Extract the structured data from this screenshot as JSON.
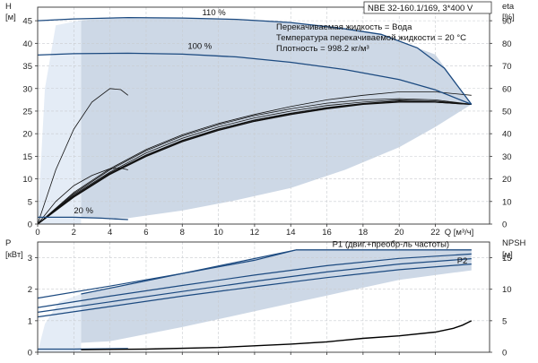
{
  "header": {
    "model_label": "NBE 32-160.1/169, 3*400 V",
    "info_lines": [
      "Перекачиваемая жидкость = Вода",
      "Температура перекачиваемой жидкости = 20 °C",
      "Плотность = 998.2 кг/м³"
    ]
  },
  "colors": {
    "region_fill": "#cdd8e6",
    "lowflow_fill": "#e4ecf6",
    "speed_curve": "#1c4a80",
    "eta_curve": "#111111",
    "npsh_curve": "#000000"
  },
  "chart_data": [
    {
      "type": "line",
      "name": "head-efficiency",
      "ylabel": "H",
      "yunit": "[м]",
      "y2label": "eta",
      "y2unit": "[%]",
      "xlim": [
        0,
        25
      ],
      "ylim": [
        0,
        48
      ],
      "y2lim": [
        0,
        96
      ],
      "x_ticks": [
        0,
        2,
        4,
        6,
        8,
        10,
        12,
        14,
        16,
        18,
        20,
        22
      ],
      "x_tick_labels": [
        "0",
        "2",
        "4",
        "6",
        "8",
        "10",
        "12",
        "14",
        "16",
        "18",
        "20",
        "22"
      ],
      "xlabel": "Q [м³/ч]",
      "y_ticks": [
        0,
        5,
        10,
        15,
        20,
        25,
        30,
        35,
        40,
        45
      ],
      "y_tick_labels": [
        "0",
        "5",
        "10",
        "15",
        "20",
        "25",
        "30",
        "35",
        "40",
        "45"
      ],
      "y2_ticks": [
        0,
        10,
        20,
        30,
        40,
        50,
        60,
        70,
        80,
        90
      ],
      "y2_tick_labels": [
        "0",
        "10",
        "20",
        "30",
        "40",
        "50",
        "60",
        "70",
        "80",
        "90"
      ],
      "grid": true,
      "region": {
        "upper": [
          [
            2.4,
            45.1
          ],
          [
            4,
            45.5
          ],
          [
            8,
            45.6
          ],
          [
            12,
            45.2
          ],
          [
            16,
            44.0
          ],
          [
            19,
            42.0
          ],
          [
            22,
            37.5
          ],
          [
            24,
            26.5
          ]
        ],
        "lower": [
          [
            24,
            26.5
          ],
          [
            22,
            21.5
          ],
          [
            20,
            17.0
          ],
          [
            17,
            12.0
          ],
          [
            14,
            8.0
          ],
          [
            11,
            5.3
          ],
          [
            8,
            3.0
          ],
          [
            5,
            1.3
          ],
          [
            2.4,
            1.2
          ]
        ],
        "lowflow_upper": [
          [
            0,
            0
          ],
          [
            0.4,
            30
          ],
          [
            1.0,
            44
          ],
          [
            2.4,
            45.1
          ]
        ]
      },
      "series": [
        {
          "name": "110 %",
          "label": "110 %",
          "label_at": [
            9.1,
            46.0
          ],
          "points": [
            [
              0,
              45.0
            ],
            [
              2,
              45.4
            ],
            [
              5,
              45.7
            ],
            [
              8,
              45.6
            ],
            [
              11,
              45.3
            ],
            [
              14,
              44.6
            ],
            [
              17,
              43.2
            ],
            [
              19,
              42.0
            ],
            [
              21,
              39.0
            ],
            [
              22.5,
              34.5
            ],
            [
              24,
              26.5
            ]
          ]
        },
        {
          "name": "100 %",
          "label": "100 %",
          "label_at": [
            8.3,
            38.6
          ],
          "points": [
            [
              0,
              37.4
            ],
            [
              2,
              37.7
            ],
            [
              5,
              37.8
            ],
            [
              8,
              37.6
            ],
            [
              11,
              37.0
            ],
            [
              14,
              35.8
            ],
            [
              17,
              34.2
            ],
            [
              20,
              32.0
            ],
            [
              22,
              29.7
            ],
            [
              24,
              26.5
            ]
          ]
        },
        {
          "name": "20 %",
          "label": "20 %",
          "label_at": [
            2.0,
            2.2
          ],
          "points": [
            [
              0,
              1.5
            ],
            [
              2,
              1.5
            ],
            [
              3.5,
              1.3
            ],
            [
              5,
              1.0
            ]
          ]
        }
      ],
      "efficiency_curves": [
        {
          "points": [
            [
              0,
              0
            ],
            [
              1,
              24
            ],
            [
              2,
              42
            ],
            [
              3,
              54
            ],
            [
              4,
              60
            ],
            [
              4.6,
              59.5
            ],
            [
              5,
              57
            ]
          ]
        },
        {
          "points": [
            [
              0,
              0
            ],
            [
              1,
              10
            ],
            [
              2,
              17
            ],
            [
              3,
              21.5
            ],
            [
              4,
              24.5
            ],
            [
              4.6,
              24.8
            ],
            [
              5,
              24
            ]
          ]
        },
        {
          "points": [
            [
              0,
              0
            ],
            [
              2,
              14
            ],
            [
              4,
              24.5
            ],
            [
              6,
              33
            ],
            [
              8,
              39.5
            ],
            [
              10,
              44.5
            ],
            [
              12,
              48.5
            ],
            [
              14,
              52
            ],
            [
              16,
              55
            ],
            [
              18,
              57
            ],
            [
              20,
              58.5
            ],
            [
              22,
              58.5
            ],
            [
              24,
              57
            ]
          ]
        },
        {
          "points": [
            [
              0,
              0
            ],
            [
              2,
              13.5
            ],
            [
              4,
              24
            ],
            [
              6,
              32.5
            ],
            [
              8,
              39
            ],
            [
              10,
              44
            ],
            [
              12,
              48
            ],
            [
              14,
              51
            ],
            [
              16,
              53.5
            ],
            [
              18,
              55
            ],
            [
              20,
              55.5
            ],
            [
              22,
              55
            ],
            [
              24,
              53
            ]
          ]
        },
        {
          "points": [
            [
              0,
              0
            ],
            [
              2,
              13
            ],
            [
              4,
              23
            ],
            [
              6,
              31.5
            ],
            [
              8,
              38
            ],
            [
              10,
              43
            ],
            [
              12,
              47
            ],
            [
              14,
              50
            ],
            [
              16,
              52.5
            ],
            [
              18,
              54
            ],
            [
              20,
              55
            ],
            [
              22,
              54.5
            ],
            [
              24,
              53
            ]
          ]
        },
        {
          "points": [
            [
              0,
              0
            ],
            [
              2,
              12.5
            ],
            [
              4,
              22.5
            ],
            [
              6,
              30.5
            ],
            [
              8,
              37
            ],
            [
              10,
              42
            ],
            [
              12,
              46
            ],
            [
              14,
              49
            ],
            [
              16,
              51.5
            ],
            [
              18,
              53.3
            ],
            [
              20,
              54.5
            ],
            [
              22,
              54
            ],
            [
              24,
              53
            ]
          ]
        },
        {
          "points": [
            [
              0,
              0
            ],
            [
              2,
              12
            ],
            [
              4,
              22
            ],
            [
              6,
              30
            ],
            [
              8,
              36.5
            ],
            [
              10,
              41.5
            ],
            [
              12,
              45.5
            ],
            [
              14,
              48.5
            ],
            [
              16,
              51
            ],
            [
              18,
              53
            ],
            [
              20,
              54
            ],
            [
              22,
              54
            ],
            [
              24,
              53
            ]
          ]
        }
      ]
    },
    {
      "type": "line",
      "name": "power-npsh",
      "ylabel": "P",
      "yunit": "[кВт]",
      "y2label": "NPSH",
      "y2unit": "[м]",
      "xlim": [
        0,
        25
      ],
      "ylim": [
        0,
        3.5
      ],
      "y2lim": [
        0,
        17.5
      ],
      "y_ticks": [
        0,
        1,
        2,
        3
      ],
      "y_tick_labels": [
        "0",
        "1",
        "2",
        "3"
      ],
      "y2_ticks": [
        0,
        5,
        10,
        15
      ],
      "y2_tick_labels": [
        "0",
        "5",
        "10",
        "15"
      ],
      "grid": true,
      "region": {
        "upper": [
          [
            2.4,
            1.85
          ],
          [
            8,
            2.5
          ],
          [
            14.3,
            3.25
          ],
          [
            24,
            3.25
          ]
        ],
        "lower": [
          [
            24,
            2.6
          ],
          [
            20,
            2.3
          ],
          [
            16,
            1.8
          ],
          [
            12,
            1.3
          ],
          [
            8,
            0.8
          ],
          [
            4,
            0.35
          ],
          [
            2.4,
            0.3
          ]
        ],
        "lowflow_upper": [
          [
            0,
            0
          ],
          [
            0.4,
            0.9
          ],
          [
            1.2,
            1.6
          ],
          [
            2.4,
            1.85
          ]
        ]
      },
      "series": [
        {
          "name": "P1 (двиг.+преобр-ль частоты)",
          "label": "P1 (двиг.+преобр-ль частоты)",
          "label_at": [
            16.3,
            3.35
          ],
          "points": [
            [
              0,
              1.72
            ],
            [
              4,
              2.1
            ],
            [
              8,
              2.5
            ],
            [
              12,
              2.92
            ],
            [
              14.3,
              3.25
            ],
            [
              24,
              3.25
            ]
          ]
        },
        {
          "name": "upper-bound",
          "points": [
            [
              2.4,
              1.85
            ],
            [
              8,
              2.5
            ],
            [
              14.3,
              3.25
            ],
            [
              24,
              3.25
            ]
          ]
        },
        {
          "name": "100 % P1",
          "points": [
            [
              0,
              1.42
            ],
            [
              4,
              1.78
            ],
            [
              8,
              2.12
            ],
            [
              12,
              2.45
            ],
            [
              16,
              2.75
            ],
            [
              20,
              2.98
            ],
            [
              24,
              3.12
            ]
          ]
        },
        {
          "name": "100 % mid",
          "points": [
            [
              0,
              1.27
            ],
            [
              4,
              1.6
            ],
            [
              8,
              1.93
            ],
            [
              12,
              2.25
            ],
            [
              16,
              2.55
            ],
            [
              20,
              2.8
            ],
            [
              24,
              2.97
            ]
          ]
        },
        {
          "name": "P2",
          "label": "P2",
          "label_at": [
            23.2,
            2.82
          ],
          "points": [
            [
              0,
              1.12
            ],
            [
              4,
              1.45
            ],
            [
              8,
              1.78
            ],
            [
              12,
              2.08
            ],
            [
              16,
              2.37
            ],
            [
              20,
              2.62
            ],
            [
              24,
              2.8
            ]
          ]
        },
        {
          "name": "20 %",
          "points": [
            [
              0,
              0.1
            ],
            [
              2,
              0.1
            ],
            [
              5,
              0.12
            ]
          ]
        }
      ],
      "npsh": {
        "points": [
          [
            2.4,
            0.4
          ],
          [
            6,
            0.5
          ],
          [
            10,
            0.75
          ],
          [
            14,
            1.3
          ],
          [
            16,
            1.65
          ],
          [
            18,
            2.2
          ],
          [
            20,
            2.6
          ],
          [
            22,
            3.2
          ],
          [
            23,
            3.8
          ],
          [
            23.5,
            4.3
          ],
          [
            24,
            5.0
          ]
        ]
      }
    }
  ]
}
